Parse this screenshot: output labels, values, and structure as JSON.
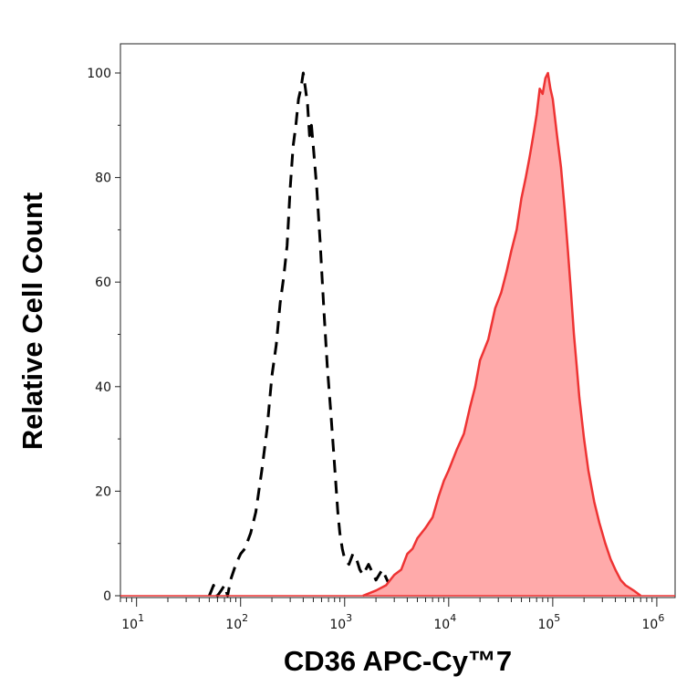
{
  "chart_data": {
    "type": "area",
    "xlabel": "CD36 APC-Cy™7",
    "ylabel": "Relative Cell Count",
    "x_scale": "log",
    "xlim": [
      7,
      1500000
    ],
    "ylim": [
      0,
      100
    ],
    "x_ticks": [
      {
        "value": 10,
        "base": "10",
        "exp": "1"
      },
      {
        "value": 100,
        "base": "10",
        "exp": "2"
      },
      {
        "value": 1000,
        "base": "10",
        "exp": "3"
      },
      {
        "value": 10000,
        "base": "10",
        "exp": "4"
      },
      {
        "value": 100000,
        "base": "10",
        "exp": "5"
      },
      {
        "value": 1000000,
        "base": "10",
        "exp": "6"
      }
    ],
    "y_ticks": [
      0,
      20,
      40,
      60,
      80,
      100
    ],
    "grid": false,
    "series": [
      {
        "style": "dashed-line",
        "color": "#000000",
        "points": [
          [
            50,
            0
          ],
          [
            55,
            2
          ],
          [
            60,
            0
          ],
          [
            65,
            1
          ],
          [
            70,
            2
          ],
          [
            75,
            0
          ],
          [
            80,
            3
          ],
          [
            90,
            6
          ],
          [
            100,
            8
          ],
          [
            110,
            9
          ],
          [
            125,
            12
          ],
          [
            140,
            16
          ],
          [
            160,
            24
          ],
          [
            180,
            32
          ],
          [
            200,
            42
          ],
          [
            220,
            48
          ],
          [
            240,
            56
          ],
          [
            260,
            61
          ],
          [
            280,
            67
          ],
          [
            300,
            78
          ],
          [
            320,
            86
          ],
          [
            340,
            90
          ],
          [
            360,
            95
          ],
          [
            380,
            97
          ],
          [
            400,
            100
          ],
          [
            420,
            97
          ],
          [
            440,
            94
          ],
          [
            460,
            88
          ],
          [
            480,
            90
          ],
          [
            500,
            86
          ],
          [
            540,
            78
          ],
          [
            580,
            68
          ],
          [
            630,
            55
          ],
          [
            680,
            44
          ],
          [
            730,
            36
          ],
          [
            780,
            28
          ],
          [
            820,
            22
          ],
          [
            860,
            16
          ],
          [
            900,
            12
          ],
          [
            950,
            9
          ],
          [
            1000,
            7
          ],
          [
            1100,
            6
          ],
          [
            1200,
            8
          ],
          [
            1300,
            7
          ],
          [
            1400,
            5
          ],
          [
            1500,
            4
          ],
          [
            1700,
            6
          ],
          [
            2000,
            3
          ],
          [
            2300,
            5
          ],
          [
            2700,
            2
          ],
          [
            3000,
            3
          ],
          [
            3500,
            2
          ],
          [
            4000,
            1
          ],
          [
            5000,
            0.5
          ],
          [
            7000,
            0
          ]
        ]
      },
      {
        "style": "filled-area",
        "color": "#ee3333",
        "fill": "#ffaaaa",
        "points": [
          [
            1500,
            0
          ],
          [
            2000,
            1
          ],
          [
            2500,
            2
          ],
          [
            3000,
            4
          ],
          [
            3500,
            5
          ],
          [
            4000,
            8
          ],
          [
            4500,
            9
          ],
          [
            5000,
            11
          ],
          [
            6000,
            13
          ],
          [
            7000,
            15
          ],
          [
            8000,
            19
          ],
          [
            9000,
            22
          ],
          [
            10000,
            24
          ],
          [
            12000,
            28
          ],
          [
            14000,
            31
          ],
          [
            16000,
            36
          ],
          [
            18000,
            40
          ],
          [
            20000,
            45
          ],
          [
            24000,
            49
          ],
          [
            28000,
            55
          ],
          [
            32000,
            58
          ],
          [
            36000,
            62
          ],
          [
            40000,
            66
          ],
          [
            45000,
            70
          ],
          [
            50000,
            76
          ],
          [
            55000,
            80
          ],
          [
            60000,
            84
          ],
          [
            65000,
            88
          ],
          [
            70000,
            92
          ],
          [
            75000,
            97
          ],
          [
            80000,
            96
          ],
          [
            85000,
            99
          ],
          [
            90000,
            100
          ],
          [
            95000,
            97
          ],
          [
            100000,
            95
          ],
          [
            110000,
            88
          ],
          [
            120000,
            82
          ],
          [
            130000,
            74
          ],
          [
            140000,
            66
          ],
          [
            150000,
            58
          ],
          [
            160000,
            50
          ],
          [
            170000,
            44
          ],
          [
            180000,
            38
          ],
          [
            200000,
            30
          ],
          [
            220000,
            24
          ],
          [
            250000,
            18
          ],
          [
            280000,
            14
          ],
          [
            320000,
            10
          ],
          [
            360000,
            7
          ],
          [
            400000,
            5
          ],
          [
            450000,
            3
          ],
          [
            500000,
            2
          ],
          [
            600000,
            1
          ],
          [
            700000,
            0
          ]
        ]
      }
    ]
  }
}
